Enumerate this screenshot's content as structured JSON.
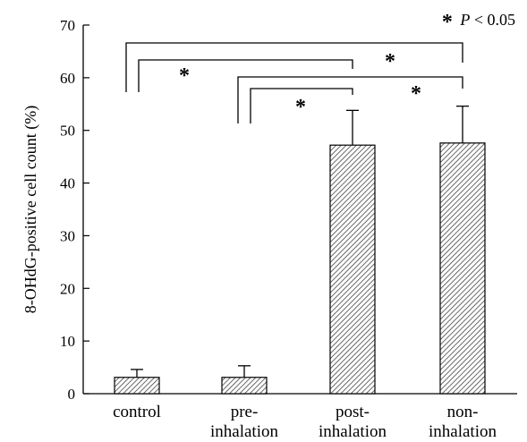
{
  "chart_data": {
    "type": "bar",
    "categories": [
      [
        "control"
      ],
      [
        "pre-",
        "inhalation"
      ],
      [
        "post-",
        "inhalation"
      ],
      [
        "non-",
        "inhalation"
      ]
    ],
    "values": [
      3.1,
      3.1,
      47.2,
      47.6
    ],
    "errors": [
      1.5,
      2.2,
      6.6,
      7.0
    ],
    "ylabel": "8-OHdG-positive cell count (%)",
    "ylim": [
      0,
      70
    ],
    "yticks": [
      0,
      10,
      20,
      30,
      40,
      50,
      60,
      70
    ],
    "bar_fill": "diagonal hatch",
    "significance": [
      {
        "from": 0,
        "to": 2,
        "marker": "*"
      },
      {
        "from": 0,
        "to": 3,
        "marker": "*"
      },
      {
        "from": 1,
        "to": 2,
        "marker": "*"
      },
      {
        "from": 1,
        "to": 3,
        "marker": "*"
      }
    ],
    "annotation": {
      "marker": "*",
      "text": "P",
      "comparison": " < 0.05"
    }
  }
}
